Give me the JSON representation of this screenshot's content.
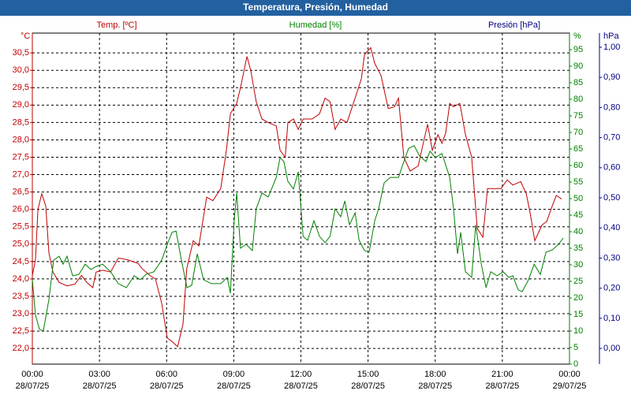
{
  "chart_data": {
    "type": "line",
    "title": "Temperatura, Presión, Humedad",
    "xlim": [
      0,
      24
    ],
    "xticks": [
      {
        "value": 0,
        "label": "00:00",
        "date": "28/07/25"
      },
      {
        "value": 3,
        "label": "03:00",
        "date": "28/07/25"
      },
      {
        "value": 6,
        "label": "06:00",
        "date": "28/07/25"
      },
      {
        "value": 9,
        "label": "09:00",
        "date": "28/07/25"
      },
      {
        "value": 12,
        "label": "12:00",
        "date": "28/07/25"
      },
      {
        "value": 15,
        "label": "15:00",
        "date": "28/07/25"
      },
      {
        "value": 18,
        "label": "18:00",
        "date": "28/07/25"
      },
      {
        "value": 21,
        "label": "21:00",
        "date": "28/07/25"
      },
      {
        "value": 24,
        "label": "00:00",
        "date": "29/07/25"
      }
    ],
    "ylabel": "°C",
    "ylim": [
      21.55,
      31.07
    ],
    "yticks": [
      {
        "value": 22.0,
        "label": "22,0"
      },
      {
        "value": 22.5,
        "label": "22,5"
      },
      {
        "value": 23.0,
        "label": "23,0"
      },
      {
        "value": 23.5,
        "label": "23,5"
      },
      {
        "value": 24.0,
        "label": "24,0"
      },
      {
        "value": 24.5,
        "label": "24,5"
      },
      {
        "value": 25.0,
        "label": "25,0"
      },
      {
        "value": 25.5,
        "label": "25,5"
      },
      {
        "value": 26.0,
        "label": "26,0"
      },
      {
        "value": 26.5,
        "label": "26,5"
      },
      {
        "value": 27.0,
        "label": "27,0"
      },
      {
        "value": 27.5,
        "label": "27,5"
      },
      {
        "value": 28.0,
        "label": "28,0"
      },
      {
        "value": 28.5,
        "label": "28,5"
      },
      {
        "value": 29.0,
        "label": "29,0"
      },
      {
        "value": 29.5,
        "label": "29,5"
      },
      {
        "value": 30.0,
        "label": "30,0"
      },
      {
        "value": 30.5,
        "label": "30,5"
      }
    ],
    "y2label": "%",
    "y2lim": [
      0,
      100
    ],
    "y2ticks": [
      0,
      5,
      10,
      15,
      20,
      25,
      30,
      35,
      40,
      45,
      50,
      55,
      60,
      65,
      70,
      75,
      80,
      85,
      90,
      95
    ],
    "y3label": "hPa",
    "y3lim": [
      -0.052,
      1.047
    ],
    "y3ticks": [
      {
        "value": 0,
        "label": "0,00"
      },
      {
        "value": 0.1,
        "label": "0,10"
      },
      {
        "value": 0.2,
        "label": "0,20"
      },
      {
        "value": 0.3,
        "label": "0,30"
      },
      {
        "value": 0.4,
        "label": "0,40"
      },
      {
        "value": 0.5,
        "label": "0,50"
      },
      {
        "value": 0.6,
        "label": "0,60"
      },
      {
        "value": 0.7,
        "label": "0,70"
      },
      {
        "value": 0.8,
        "label": "0,80"
      },
      {
        "value": 0.9,
        "label": "0,90"
      },
      {
        "value": 1.0,
        "label": "1,00"
      }
    ],
    "grid": true,
    "series": [
      {
        "name": "Temp. [ºC]",
        "color": "#c00000",
        "axis": "y",
        "x": [
          0,
          0.14,
          0.25,
          0.42,
          0.6,
          0.74,
          0.92,
          1.2,
          1.55,
          1.9,
          2.2,
          2.43,
          2.7,
          2.85,
          3.14,
          3.5,
          3.84,
          4.26,
          4.72,
          4.9,
          5.25,
          5.5,
          5.78,
          6.03,
          6.24,
          6.49,
          6.73,
          6.9,
          7.19,
          7.44,
          7.79,
          8.07,
          8.42,
          8.67,
          8.85,
          9.13,
          9.3,
          9.59,
          9.76,
          10.0,
          10.26,
          10.54,
          10.9,
          11.07,
          11.3,
          11.42,
          11.67,
          11.88,
          12.1,
          12.5,
          12.83,
          13.08,
          13.3,
          13.53,
          13.78,
          14.06,
          14.42,
          14.7,
          14.84,
          15.12,
          15.3,
          15.58,
          15.9,
          16.18,
          16.36,
          16.6,
          16.88,
          17.24,
          17.52,
          17.66,
          17.87,
          18.12,
          18.3,
          18.47,
          18.65,
          18.82,
          19.1,
          19.35,
          19.63,
          19.88,
          20.13,
          20.34,
          20.58,
          20.94,
          21.22,
          21.47,
          21.82,
          22.07,
          22.24,
          22.45,
          22.77,
          22.98,
          23.23,
          23.41,
          23.65
        ],
        "values": [
          24.1,
          24.55,
          26.0,
          26.45,
          26.1,
          24.75,
          24.2,
          23.9,
          23.8,
          23.85,
          24.1,
          23.9,
          23.75,
          24.2,
          24.25,
          24.2,
          24.6,
          24.55,
          24.45,
          24.3,
          24.1,
          24.0,
          23.3,
          22.3,
          22.2,
          22.05,
          22.7,
          24.3,
          25.1,
          24.95,
          26.35,
          26.25,
          26.6,
          27.7,
          28.75,
          29.05,
          29.5,
          30.4,
          30.0,
          29.1,
          28.6,
          28.5,
          28.4,
          27.7,
          27.5,
          28.5,
          28.6,
          28.3,
          28.6,
          28.6,
          28.75,
          29.2,
          29.1,
          28.3,
          28.6,
          28.5,
          29.2,
          29.75,
          30.45,
          30.65,
          30.2,
          29.85,
          28.9,
          28.95,
          29.2,
          27.5,
          27.1,
          27.25,
          28.05,
          28.45,
          27.7,
          28.15,
          27.9,
          28.2,
          29.05,
          28.95,
          29.05,
          28.15,
          27.5,
          25.45,
          25.2,
          26.6,
          26.6,
          26.6,
          26.85,
          26.7,
          26.8,
          26.45,
          25.9,
          25.1,
          25.55,
          25.65,
          26.1,
          26.4,
          26.3
        ]
      },
      {
        "name": "Humedad [%]",
        "color": "#008000",
        "axis": "y2",
        "x": [
          0,
          0.14,
          0.32,
          0.49,
          0.74,
          0.95,
          1.2,
          1.37,
          1.55,
          1.8,
          2.08,
          2.36,
          2.61,
          2.85,
          3.14,
          3.5,
          3.84,
          4.2,
          4.55,
          4.83,
          5.08,
          5.43,
          5.78,
          6.03,
          6.24,
          6.42,
          6.66,
          6.91,
          7.12,
          7.37,
          7.65,
          8.0,
          8.42,
          8.71,
          8.85,
          9.02,
          9.13,
          9.3,
          9.55,
          9.83,
          10.0,
          10.26,
          10.54,
          10.9,
          11.07,
          11.24,
          11.42,
          11.67,
          11.88,
          12.1,
          12.3,
          12.58,
          12.83,
          13.08,
          13.3,
          13.53,
          13.78,
          13.96,
          14.17,
          14.42,
          14.6,
          14.84,
          15.05,
          15.3,
          15.47,
          15.72,
          16.0,
          16.36,
          16.6,
          16.81,
          17.06,
          17.3,
          17.59,
          17.77,
          18.0,
          18.3,
          18.65,
          18.82,
          19.0,
          19.14,
          19.35,
          19.63,
          19.81,
          20.06,
          20.27,
          20.48,
          20.76,
          21.04,
          21.29,
          21.47,
          21.71,
          21.89,
          22.17,
          22.42,
          22.7,
          22.95,
          23.23,
          23.51,
          23.72
        ],
        "values": [
          25.5,
          14.8,
          10.5,
          10,
          19.5,
          31.4,
          32.6,
          30.2,
          32.6,
          26.7,
          27.1,
          30.2,
          28.6,
          29.5,
          30.2,
          27.9,
          24.3,
          23.1,
          26.7,
          25.5,
          27.1,
          27.9,
          31.4,
          36.2,
          39.8,
          40.2,
          31.4,
          23.1,
          23.8,
          33.3,
          25.5,
          24.3,
          24.3,
          26.2,
          21.4,
          43.3,
          51.7,
          35.0,
          36.2,
          34.3,
          46.9,
          51.7,
          50.5,
          56.4,
          62.4,
          61.2,
          55.2,
          52.9,
          58.1,
          38.6,
          37.4,
          43.3,
          38.6,
          36.7,
          38.6,
          46.9,
          44.5,
          49.3,
          42.1,
          45.7,
          37.4,
          34.3,
          33.8,
          43.3,
          46.9,
          54.8,
          56.4,
          56.4,
          61.2,
          65.2,
          66,
          62.9,
          61.2,
          64.3,
          62.4,
          63.6,
          56.4,
          46.9,
          33.3,
          39.8,
          27.9,
          26.2,
          42.1,
          30.2,
          23.1,
          27.9,
          26.7,
          27.9,
          26.2,
          26.7,
          22.4,
          21.9,
          25.5,
          30.2,
          27.1,
          33.8,
          34.5,
          36.2,
          38.1
        ]
      },
      {
        "name": "Presión [hPa]",
        "color": "#000080",
        "axis": "y3",
        "x": [],
        "values": []
      }
    ]
  }
}
